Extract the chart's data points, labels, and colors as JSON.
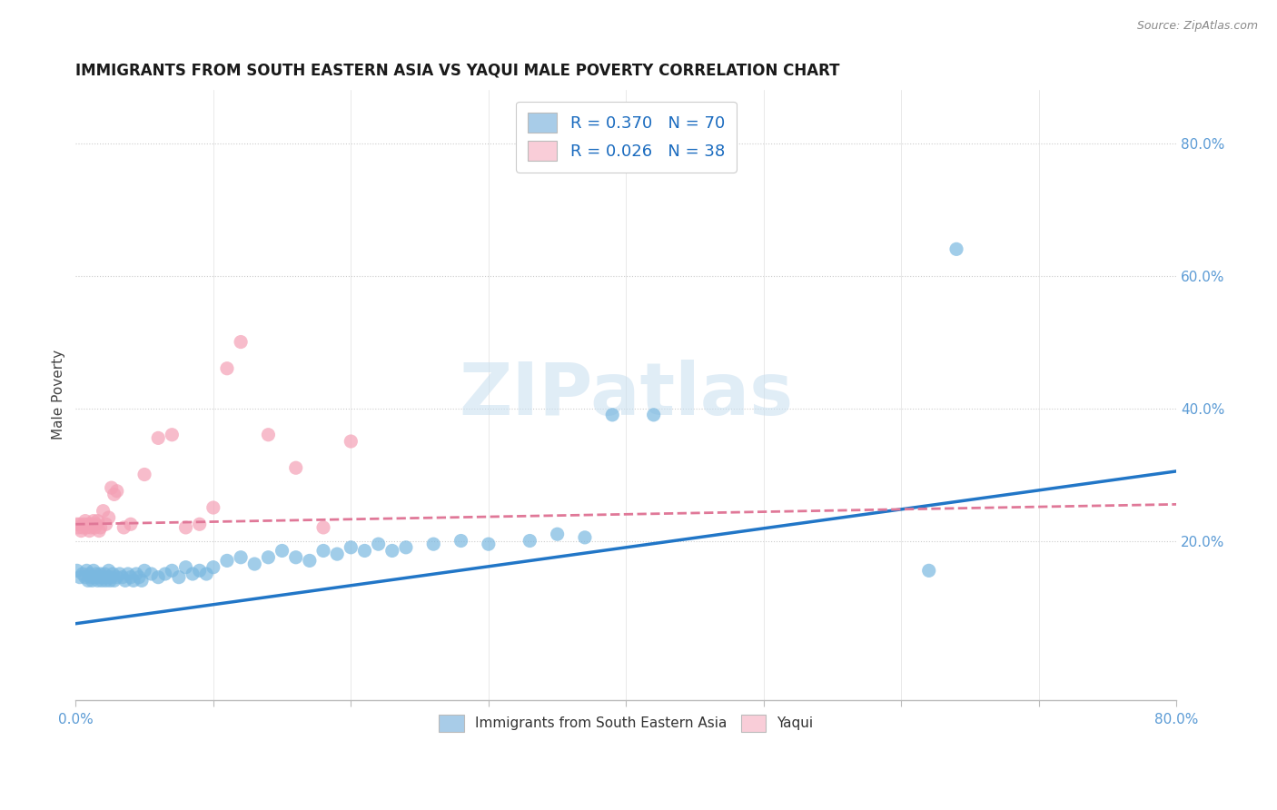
{
  "title": "IMMIGRANTS FROM SOUTH EASTERN ASIA VS YAQUI MALE POVERTY CORRELATION CHART",
  "source": "Source: ZipAtlas.com",
  "ylabel": "Male Poverty",
  "xlim": [
    0.0,
    0.8
  ],
  "ylim": [
    -0.04,
    0.88
  ],
  "legend_r1": "R = 0.370",
  "legend_n1": "N = 70",
  "legend_r2": "R = 0.026",
  "legend_n2": "N = 38",
  "blue_color": "#7ab8e0",
  "pink_color": "#f4a0b5",
  "blue_fill": "#a8cce8",
  "pink_fill": "#f9cdd8",
  "trend_blue_color": "#2176c7",
  "trend_pink_color": "#e07898",
  "trend_blue_x0": 0.0,
  "trend_blue_y0": 0.075,
  "trend_blue_x1": 0.8,
  "trend_blue_y1": 0.305,
  "trend_pink_x0": 0.0,
  "trend_pink_y0": 0.225,
  "trend_pink_x1": 0.8,
  "trend_pink_y1": 0.255,
  "watermark_text": "ZIPatlas",
  "title_fontsize": 12,
  "blue_scatter_x": [
    0.001,
    0.003,
    0.005,
    0.007,
    0.008,
    0.009,
    0.01,
    0.011,
    0.012,
    0.013,
    0.014,
    0.015,
    0.016,
    0.017,
    0.018,
    0.019,
    0.02,
    0.021,
    0.022,
    0.023,
    0.024,
    0.025,
    0.026,
    0.027,
    0.028,
    0.03,
    0.032,
    0.034,
    0.036,
    0.038,
    0.04,
    0.042,
    0.044,
    0.046,
    0.048,
    0.05,
    0.055,
    0.06,
    0.065,
    0.07,
    0.075,
    0.08,
    0.085,
    0.09,
    0.095,
    0.1,
    0.11,
    0.12,
    0.13,
    0.14,
    0.15,
    0.16,
    0.17,
    0.18,
    0.19,
    0.2,
    0.21,
    0.22,
    0.23,
    0.24,
    0.26,
    0.28,
    0.3,
    0.33,
    0.35,
    0.37,
    0.39,
    0.42,
    0.62,
    0.64
  ],
  "blue_scatter_y": [
    0.155,
    0.145,
    0.15,
    0.145,
    0.155,
    0.14,
    0.15,
    0.145,
    0.14,
    0.155,
    0.145,
    0.15,
    0.14,
    0.145,
    0.15,
    0.14,
    0.145,
    0.15,
    0.14,
    0.145,
    0.155,
    0.14,
    0.145,
    0.15,
    0.14,
    0.145,
    0.15,
    0.145,
    0.14,
    0.15,
    0.145,
    0.14,
    0.15,
    0.145,
    0.14,
    0.155,
    0.15,
    0.145,
    0.15,
    0.155,
    0.145,
    0.16,
    0.15,
    0.155,
    0.15,
    0.16,
    0.17,
    0.175,
    0.165,
    0.175,
    0.185,
    0.175,
    0.17,
    0.185,
    0.18,
    0.19,
    0.185,
    0.195,
    0.185,
    0.19,
    0.195,
    0.2,
    0.195,
    0.2,
    0.21,
    0.205,
    0.39,
    0.39,
    0.155,
    0.64
  ],
  "pink_scatter_x": [
    0.001,
    0.002,
    0.003,
    0.004,
    0.005,
    0.006,
    0.007,
    0.008,
    0.009,
    0.01,
    0.011,
    0.012,
    0.013,
    0.014,
    0.015,
    0.016,
    0.017,
    0.018,
    0.02,
    0.022,
    0.024,
    0.026,
    0.028,
    0.03,
    0.035,
    0.04,
    0.05,
    0.06,
    0.07,
    0.08,
    0.09,
    0.1,
    0.11,
    0.12,
    0.14,
    0.16,
    0.18,
    0.2
  ],
  "pink_scatter_y": [
    0.225,
    0.22,
    0.225,
    0.215,
    0.22,
    0.225,
    0.23,
    0.22,
    0.225,
    0.215,
    0.22,
    0.225,
    0.23,
    0.22,
    0.225,
    0.23,
    0.215,
    0.22,
    0.245,
    0.225,
    0.235,
    0.28,
    0.27,
    0.275,
    0.22,
    0.225,
    0.3,
    0.355,
    0.36,
    0.22,
    0.225,
    0.25,
    0.46,
    0.5,
    0.36,
    0.31,
    0.22,
    0.35
  ]
}
